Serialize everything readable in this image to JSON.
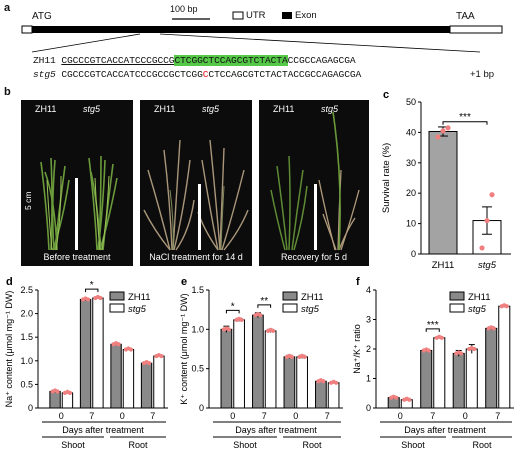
{
  "panel_a": {
    "label": "a",
    "atg": "ATG",
    "taa": "TAA",
    "scale": "100 bp",
    "legend_utr": "UTR",
    "legend_exon": "Exon",
    "wt_name": "ZH11",
    "wt_seq_pre": "CGCCCGTCACCATCCCGCCG",
    "wt_seq_hl": "CTCGGCTCCAGCGTCTACTA",
    "wt_seq_post": "CCGCCAGAGCGA",
    "mut_name": "stg5",
    "mut_seq_pre": "CGCCCGTCACCATCCCGCCGCTCGG",
    "mut_insert": "C",
    "mut_seq_post": "CTCCAGCGTCTACTACCGCCAGAGCGA",
    "mut_note": "+1 bp",
    "highlight_color": "#55c947"
  },
  "panel_b": {
    "label": "b",
    "photos": [
      {
        "wt": "ZH11",
        "mut": "stg5",
        "caption": "Before treatment",
        "scale": "5 cm"
      },
      {
        "wt": "ZH11",
        "mut": "stg5",
        "caption": "NaCl treatment for 14 d"
      },
      {
        "wt": "ZH11",
        "mut": "stg5",
        "caption": "Recovery for 5 d"
      }
    ]
  },
  "chart_data": [
    {
      "panel": "c",
      "type": "bar",
      "ylabel": "Survival rate (%)",
      "ylim": [
        0,
        50
      ],
      "yticks": [
        0,
        10,
        20,
        30,
        40,
        50
      ],
      "categories": [
        "ZH11",
        "stg5"
      ],
      "values": [
        40.3,
        11
      ],
      "errors": [
        1.5,
        4.5
      ],
      "points": [
        [
          38.5,
          40.5,
          41.5
        ],
        [
          2,
          11,
          19.5
        ]
      ],
      "significance": "***",
      "colors": {
        "bar": "#a3a3a3",
        "point": "#f08080"
      }
    },
    {
      "panel": "d",
      "type": "bar",
      "ylabel": "Na⁺ content (μmol mg⁻¹ DW)",
      "ylim": [
        0,
        2.5
      ],
      "yticks": [
        "0",
        "0.5",
        "1.0",
        "1.5",
        "2.0",
        "2.5"
      ],
      "categories": [
        "0",
        "7",
        "0",
        "7"
      ],
      "groups": [
        "Shoot",
        "Root"
      ],
      "xlabel": "Days after treatment",
      "series": [
        {
          "name": "ZH11",
          "values": [
            0.35,
            2.3,
            1.35,
            0.95
          ],
          "errors": [
            0.03,
            0.03,
            0.02,
            0.02
          ]
        },
        {
          "name": "stg5",
          "values": [
            0.32,
            2.33,
            1.24,
            1.1
          ],
          "errors": [
            0.02,
            0.02,
            0.02,
            0.02
          ]
        }
      ],
      "significance": [
        {
          "category": 1,
          "text": "*"
        }
      ],
      "legend": "top-right"
    },
    {
      "panel": "e",
      "type": "bar",
      "ylabel": "K⁺ content (μmol mg⁻¹ DW)",
      "ylim": [
        0,
        1.5
      ],
      "yticks": [
        "0",
        "0.5",
        "1.0",
        "1.5"
      ],
      "categories": [
        "0",
        "7",
        "0",
        "7"
      ],
      "groups": [
        "Shoot",
        "Root"
      ],
      "xlabel": "Days after treatment",
      "series": [
        {
          "name": "ZH11",
          "values": [
            1.0,
            1.18,
            0.65,
            0.34
          ],
          "errors": [
            0.04,
            0.03,
            0.02,
            0.01
          ]
        },
        {
          "name": "stg5",
          "values": [
            1.12,
            0.98,
            0.65,
            0.32
          ],
          "errors": [
            0.02,
            0.02,
            0.02,
            0.01
          ]
        }
      ],
      "significance": [
        {
          "category": 0,
          "text": "*"
        },
        {
          "category": 1,
          "text": "**"
        }
      ],
      "legend": "top-right"
    },
    {
      "panel": "f",
      "type": "bar",
      "ylabel": "Na⁺/K⁺ ratio",
      "ylim": [
        0,
        4
      ],
      "yticks": [
        "0",
        "1",
        "2",
        "3",
        "4"
      ],
      "categories": [
        "0",
        "7",
        "0",
        "7"
      ],
      "groups": [
        "Shoot",
        "Root"
      ],
      "xlabel": "Days after treatment",
      "series": [
        {
          "name": "ZH11",
          "values": [
            0.35,
            1.95,
            1.85,
            2.7
          ],
          "errors": [
            0.04,
            0.04,
            0.1,
            0.05
          ]
        },
        {
          "name": "stg5",
          "values": [
            0.28,
            2.38,
            2.0,
            3.45
          ],
          "errors": [
            0.03,
            0.03,
            0.15,
            0.04
          ]
        }
      ],
      "significance": [
        {
          "category": 1,
          "text": "***"
        }
      ],
      "legend": "top-left"
    }
  ]
}
